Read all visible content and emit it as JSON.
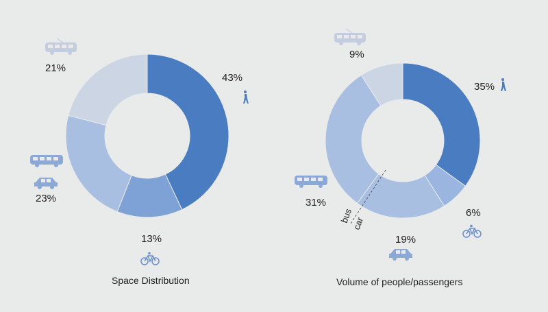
{
  "chart_data": [
    {
      "type": "pie",
      "title": "Space Distribution",
      "slices": [
        {
          "label": "43%",
          "value": 43,
          "icon": "pedestrian-icon",
          "color": "#4a7cc1"
        },
        {
          "label": "13%",
          "value": 13,
          "icon": "bicycle-icon",
          "color": "#7ea2d6"
        },
        {
          "label": "23%",
          "value": 23,
          "icon": "bus-and-car-icon",
          "color": "#a8bfe2"
        },
        {
          "label": "21%",
          "value": 21,
          "icon": "tram-icon",
          "color": "#ccd5e4"
        }
      ]
    },
    {
      "type": "pie",
      "title": "Volume of people/passengers",
      "slices": [
        {
          "label": "35%",
          "value": 35,
          "icon": "pedestrian-icon",
          "color": "#4a7cc1"
        },
        {
          "label": "6%",
          "value": 6,
          "icon": "bicycle-icon",
          "color": "#9ab6e0"
        },
        {
          "label": "19%",
          "value": 19,
          "icon": "car-icon",
          "color": "#a8bfe2"
        },
        {
          "label": "31%",
          "value": 31,
          "icon": "bus-icon",
          "color": "#a8bfe2"
        },
        {
          "label": "9%",
          "value": 9,
          "icon": "tram-icon",
          "color": "#ccd5e4"
        }
      ],
      "divider_labels": [
        "bus",
        "car"
      ]
    }
  ]
}
